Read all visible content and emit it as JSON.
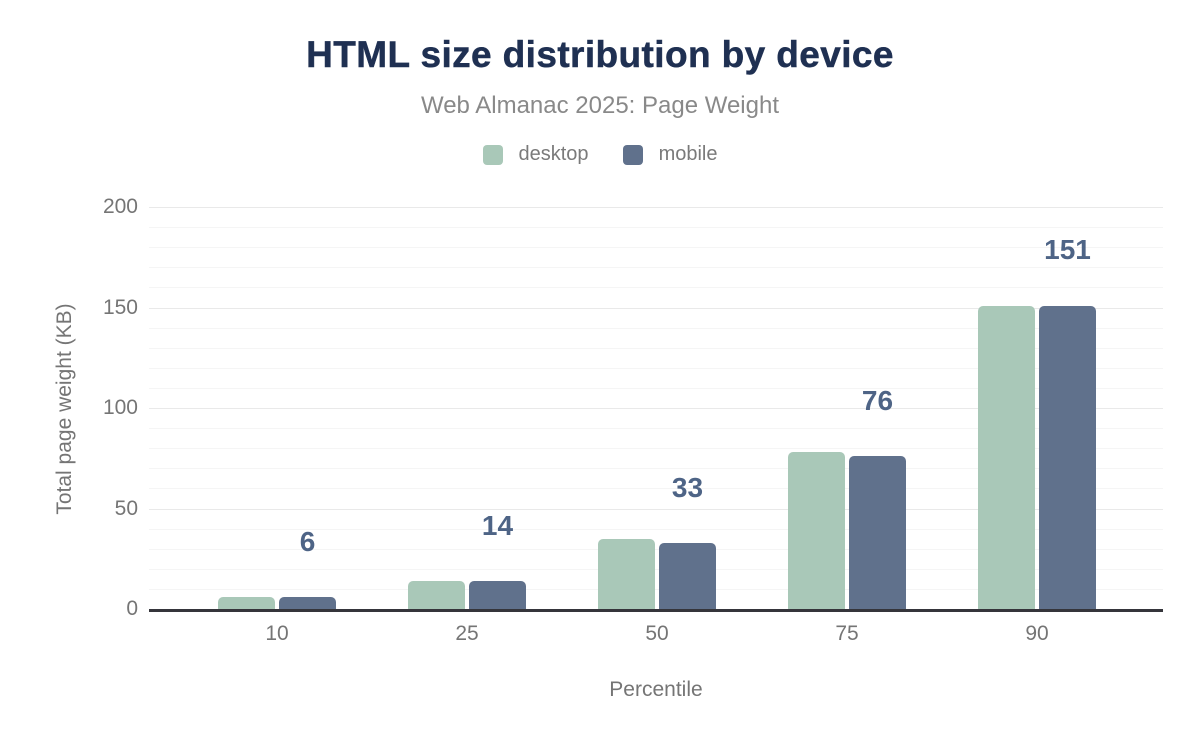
{
  "title": "HTML size distribution by device",
  "subtitle": "Web Almanac 2025: Page Weight",
  "chart_data": {
    "type": "bar",
    "title": "HTML size distribution by device",
    "subtitle": "Web Almanac 2025: Page Weight",
    "categories": [
      "10",
      "25",
      "50",
      "75",
      "90"
    ],
    "series": [
      {
        "name": "desktop",
        "color": "#A9C8B8",
        "values": [
          6,
          14,
          35,
          78,
          151
        ]
      },
      {
        "name": "mobile",
        "color": "#60718C",
        "values": [
          6,
          14,
          33,
          76,
          151
        ]
      }
    ],
    "value_labels": [
      "6",
      "14",
      "33",
      "76",
      "151"
    ],
    "value_labels_follow_series": "mobile",
    "xlabel": "Percentile",
    "ylabel": "Total page weight (KB)",
    "ylim": [
      0,
      200
    ],
    "y_major_ticks": [
      0,
      50,
      100,
      150,
      200
    ],
    "y_minor_step": 10,
    "grid": true,
    "legend_position": "top"
  },
  "colors": {
    "title_text": "#1F3052",
    "subtitle_text": "#898989",
    "axis_text": "#757575",
    "value_label_text": "#4E6486",
    "grid_major": "#e9e9e9",
    "grid_minor": "#f5f5f5",
    "axis_line": "#35353B",
    "background": "#FFFFFF",
    "desktop_bar": "#A9C8B8",
    "mobile_bar": "#60718C"
  }
}
